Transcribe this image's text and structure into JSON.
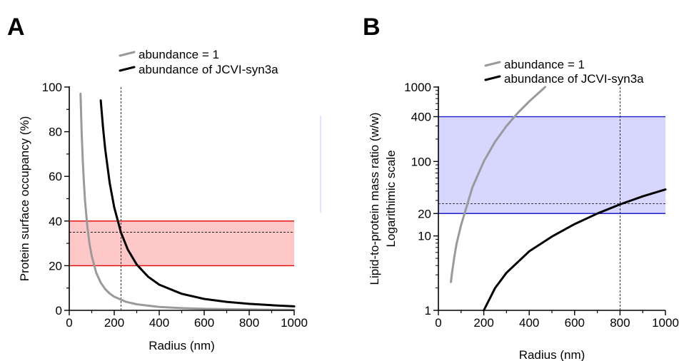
{
  "chart_data": [
    {
      "panel": "A",
      "type": "line",
      "xlabel": "Radius (nm)",
      "ylabel": "Protein surface occupancy (%)",
      "xlim": [
        0,
        1000
      ],
      "ylim": [
        0,
        100
      ],
      "xticks": [
        0,
        200,
        400,
        600,
        800,
        1000
      ],
      "yticks": [
        0,
        20,
        40,
        60,
        80,
        100
      ],
      "grid": false,
      "legend_placement": "top",
      "series": [
        {
          "name": "abundance = 1",
          "color": "#9a9a9a",
          "x": [
            50,
            55,
            60,
            65,
            70,
            80,
            90,
            100,
            120,
            140,
            160,
            180,
            200,
            250,
            300,
            400,
            500,
            600,
            700,
            800,
            900,
            1000
          ],
          "y": [
            97,
            80.2,
            67.4,
            57.4,
            49.5,
            37.9,
            29.9,
            24.3,
            16.8,
            12.4,
            9.5,
            7.5,
            6.1,
            3.9,
            2.7,
            1.5,
            1.0,
            0.67,
            0.5,
            0.38,
            0.3,
            0.24
          ]
        },
        {
          "name": "abundance of JCVI-syn3a",
          "color": "#000000",
          "x": [
            140,
            150,
            160,
            180,
            200,
            230,
            260,
            300,
            350,
            400,
            500,
            600,
            700,
            800,
            900,
            1000
          ],
          "y": [
            94,
            81.9,
            72,
            56.9,
            46.1,
            34.9,
            27.3,
            20.5,
            15.1,
            11.5,
            7.4,
            5.1,
            3.8,
            2.9,
            2.3,
            1.8
          ]
        }
      ],
      "annotations": {
        "band": {
          "y_range": [
            20,
            40
          ],
          "fill": "#ffc8c8",
          "edge": "#e00000"
        },
        "h_ref": {
          "y": 35
        },
        "v_ref": {
          "x": 230
        }
      }
    },
    {
      "panel": "B",
      "type": "line",
      "xlabel": "Radius (nm)",
      "ylabel": "Lipid-to-protein mass ratio (w/w)",
      "ylabel2": "Logarithimic scale",
      "xlim": [
        0,
        1000
      ],
      "ylim": [
        1,
        1000
      ],
      "yscale": "log",
      "xticks": [
        0,
        200,
        400,
        600,
        800,
        1000
      ],
      "yticks": [
        1,
        10,
        20,
        100,
        400,
        1000
      ],
      "grid": false,
      "legend_placement": "top",
      "series": [
        {
          "name": "abundance = 1",
          "color": "#9a9a9a",
          "x": [
            55,
            60,
            70,
            80,
            100,
            150,
            200,
            250,
            300,
            350,
            400,
            470
          ],
          "y": [
            2.4,
            3.2,
            5.2,
            7.8,
            14,
            45,
            100,
            185,
            300,
            450,
            640,
            1000
          ]
        },
        {
          "name": "abundance of JCVI-syn3a",
          "color": "#000000",
          "x": [
            200,
            250,
            300,
            400,
            500,
            600,
            700,
            800,
            900,
            1000
          ],
          "y": [
            1.0,
            2.0,
            3.2,
            6.2,
            9.8,
            14.4,
            20,
            26.5,
            34,
            42
          ]
        }
      ],
      "annotations": {
        "band": {
          "y_range": [
            20,
            400
          ],
          "fill": "#d6d6ff",
          "edge": "#2020cc"
        },
        "h_ref": {
          "y": 27
        },
        "v_ref": {
          "x": 800
        }
      }
    }
  ]
}
